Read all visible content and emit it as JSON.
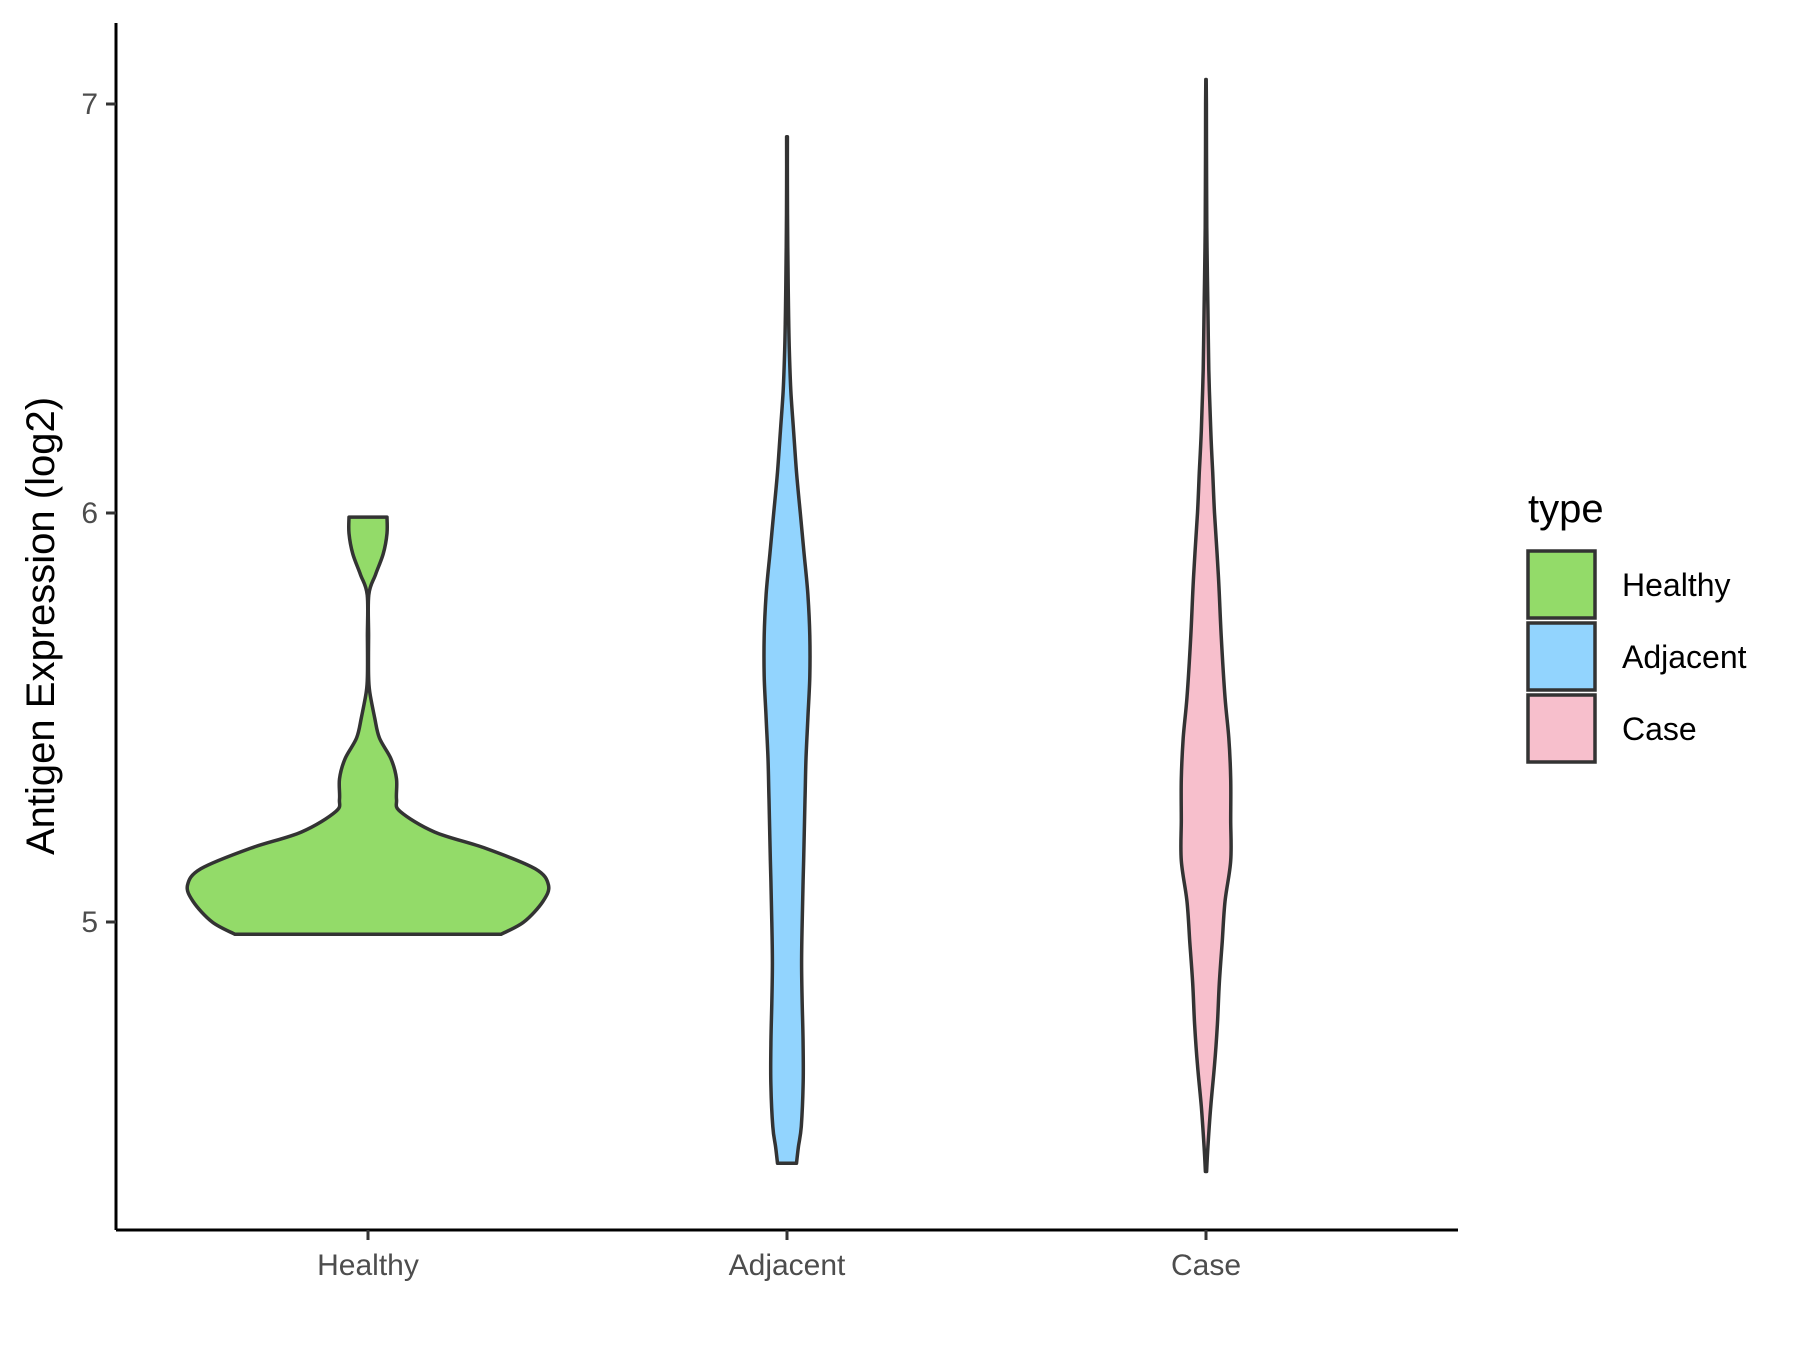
{
  "chart_data": {
    "type": "violin",
    "xlabel": "",
    "ylabel": "Antigen Expression (log2)",
    "categories": [
      "Healthy",
      "Adjacent",
      "Case"
    ],
    "yticks": [
      "5",
      "6",
      "7"
    ],
    "ylim": [
      4.26,
      7.2
    ],
    "grid": false,
    "legend": {
      "title": "type",
      "position": "right",
      "entries": [
        "Healthy",
        "Adjacent",
        "Case"
      ]
    },
    "colors": {
      "Healthy": "#93db69",
      "Adjacent": "#92d4fe",
      "Case": "#f7bfcc",
      "outline": "#333333"
    },
    "series": [
      {
        "name": "Healthy",
        "ymin": 4.97,
        "ymax": 5.99,
        "density": [
          [
            4.97,
            0.7
          ],
          [
            5.0,
            0.82
          ],
          [
            5.05,
            0.92
          ],
          [
            5.09,
            0.95
          ],
          [
            5.13,
            0.88
          ],
          [
            5.18,
            0.62
          ],
          [
            5.22,
            0.35
          ],
          [
            5.27,
            0.17
          ],
          [
            5.3,
            0.15
          ],
          [
            5.35,
            0.15
          ],
          [
            5.4,
            0.12
          ],
          [
            5.45,
            0.06
          ],
          [
            5.5,
            0.035
          ],
          [
            5.56,
            0.01
          ],
          [
            5.6,
            0.003
          ],
          [
            5.7,
            0.003
          ],
          [
            5.8,
            0.004
          ],
          [
            5.85,
            0.04
          ],
          [
            5.9,
            0.08
          ],
          [
            5.95,
            0.1
          ],
          [
            5.99,
            0.1
          ]
        ]
      },
      {
        "name": "Adjacent",
        "ymin": 4.41,
        "ymax": 6.92,
        "density": [
          [
            4.41,
            0.05
          ],
          [
            4.45,
            0.06
          ],
          [
            4.5,
            0.075
          ],
          [
            4.6,
            0.085
          ],
          [
            4.7,
            0.085
          ],
          [
            4.8,
            0.08
          ],
          [
            4.9,
            0.077
          ],
          [
            5.0,
            0.08
          ],
          [
            5.1,
            0.085
          ],
          [
            5.2,
            0.09
          ],
          [
            5.3,
            0.095
          ],
          [
            5.4,
            0.1
          ],
          [
            5.5,
            0.11
          ],
          [
            5.6,
            0.12
          ],
          [
            5.7,
            0.12
          ],
          [
            5.8,
            0.11
          ],
          [
            5.9,
            0.09
          ],
          [
            6.0,
            0.07
          ],
          [
            6.1,
            0.05
          ],
          [
            6.2,
            0.035
          ],
          [
            6.3,
            0.02
          ],
          [
            6.4,
            0.012
          ],
          [
            6.5,
            0.008
          ],
          [
            6.6,
            0.005
          ],
          [
            6.7,
            0.003
          ],
          [
            6.8,
            0.002
          ],
          [
            6.92,
            0.002
          ]
        ]
      },
      {
        "name": "Case",
        "ymin": 4.39,
        "ymax": 7.06,
        "density": [
          [
            4.39,
            0.003
          ],
          [
            4.45,
            0.01
          ],
          [
            4.55,
            0.025
          ],
          [
            4.65,
            0.045
          ],
          [
            4.75,
            0.06
          ],
          [
            4.85,
            0.07
          ],
          [
            4.95,
            0.085
          ],
          [
            5.05,
            0.1
          ],
          [
            5.15,
            0.13
          ],
          [
            5.25,
            0.13
          ],
          [
            5.35,
            0.13
          ],
          [
            5.45,
            0.12
          ],
          [
            5.55,
            0.1
          ],
          [
            5.7,
            0.08
          ],
          [
            5.85,
            0.065
          ],
          [
            6.0,
            0.045
          ],
          [
            6.1,
            0.035
          ],
          [
            6.2,
            0.025
          ],
          [
            6.35,
            0.015
          ],
          [
            6.5,
            0.01
          ],
          [
            6.65,
            0.005
          ],
          [
            6.8,
            0.003
          ],
          [
            7.0,
            0.002
          ],
          [
            7.06,
            0.001
          ]
        ]
      }
    ]
  }
}
